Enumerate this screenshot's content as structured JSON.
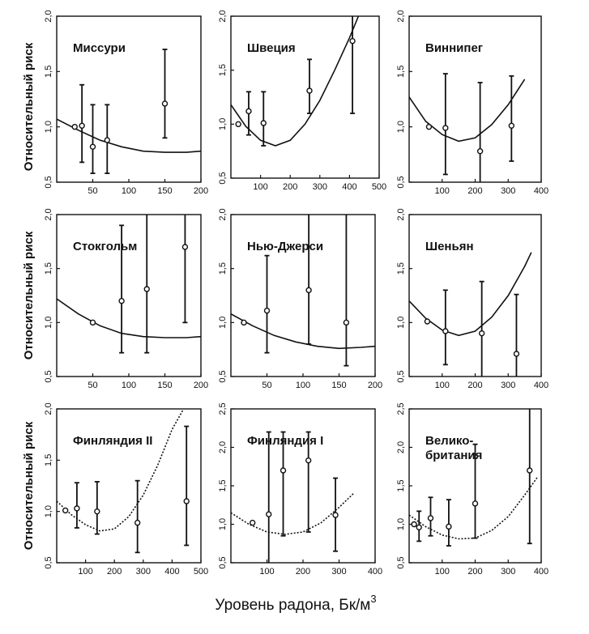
{
  "figure": {
    "ylabel": "Относительный риск",
    "xlabel_text": "Уровень радона, Бк/м",
    "xlabel_sup": "3"
  },
  "chart_data": [
    {
      "type": "scatter",
      "title": "Миссури",
      "xlim": [
        0,
        200
      ],
      "ylim": [
        0.5,
        2.0
      ],
      "xticks": [
        50,
        100,
        150,
        200
      ],
      "xtick_labels": [
        "50",
        "100",
        "150",
        "200"
      ],
      "yticks": [
        0.5,
        1.0,
        1.5,
        2.0
      ],
      "ytick_labels": [
        "0,5",
        "1,0",
        "1,5",
        "2,0"
      ],
      "points": [
        {
          "x": 25,
          "y": 1.0,
          "lo": 1.0,
          "hi": 1.0,
          "filled": true
        },
        {
          "x": 35,
          "y": 1.01,
          "lo": 0.68,
          "hi": 1.38
        },
        {
          "x": 50,
          "y": 0.82,
          "lo": 0.58,
          "hi": 1.2
        },
        {
          "x": 70,
          "y": 0.88,
          "lo": 0.58,
          "hi": 1.2
        },
        {
          "x": 150,
          "y": 1.21,
          "lo": 0.9,
          "hi": 1.7
        }
      ],
      "curve": {
        "x": [
          0,
          30,
          60,
          90,
          120,
          150,
          180,
          200
        ],
        "y": [
          1.07,
          0.97,
          0.88,
          0.82,
          0.78,
          0.77,
          0.77,
          0.78
        ]
      }
    },
    {
      "type": "scatter",
      "title": "Швеция",
      "xlim": [
        0,
        500
      ],
      "ylim": [
        0.5,
        2.0
      ],
      "xticks": [
        100,
        200,
        300,
        400,
        500
      ],
      "xtick_labels": [
        "100",
        "200",
        "300",
        "400",
        "500"
      ],
      "yticks": [
        0.5,
        1.0,
        1.5,
        2.0
      ],
      "ytick_labels": [
        "0,5",
        "1,0",
        "1,5",
        "2,0"
      ],
      "points": [
        {
          "x": 25,
          "y": 1.0,
          "lo": 1.0,
          "hi": 1.0
        },
        {
          "x": 60,
          "y": 1.12,
          "lo": 0.9,
          "hi": 1.3
        },
        {
          "x": 110,
          "y": 1.01,
          "lo": 0.8,
          "hi": 1.3
        },
        {
          "x": 265,
          "y": 1.31,
          "lo": 1.1,
          "hi": 1.6
        },
        {
          "x": 410,
          "y": 1.77,
          "lo": 1.1,
          "hi": 2.0
        }
      ],
      "curve": {
        "x": [
          0,
          50,
          100,
          150,
          200,
          250,
          300,
          350,
          400,
          430
        ],
        "y": [
          1.18,
          0.98,
          0.85,
          0.8,
          0.85,
          1.0,
          1.22,
          1.5,
          1.8,
          2.0
        ]
      }
    },
    {
      "type": "scatter",
      "title": "Виннипег",
      "xlim": [
        0,
        400
      ],
      "ylim": [
        0.5,
        2.0
      ],
      "xticks": [
        100,
        200,
        300,
        400
      ],
      "xtick_labels": [
        "100",
        "200",
        "300",
        "400"
      ],
      "yticks": [
        0.5,
        1.0,
        1.5,
        2.0
      ],
      "ytick_labels": [
        "0,5",
        "1,0",
        "1,5",
        "2,0"
      ],
      "points": [
        {
          "x": 60,
          "y": 1.0,
          "lo": 1.0,
          "hi": 1.0
        },
        {
          "x": 110,
          "y": 0.99,
          "lo": 0.57,
          "hi": 1.48
        },
        {
          "x": 215,
          "y": 0.78,
          "lo": 0.5,
          "hi": 1.4
        },
        {
          "x": 310,
          "y": 1.01,
          "lo": 0.69,
          "hi": 1.46
        }
      ],
      "curve": {
        "x": [
          0,
          50,
          100,
          150,
          200,
          250,
          300,
          350
        ],
        "y": [
          1.27,
          1.05,
          0.93,
          0.87,
          0.9,
          1.02,
          1.2,
          1.43
        ]
      }
    },
    {
      "type": "scatter",
      "title": "Стокгольм",
      "xlim": [
        0,
        200
      ],
      "ylim": [
        0.5,
        2.0
      ],
      "xticks": [
        50,
        100,
        150,
        200
      ],
      "xtick_labels": [
        "50",
        "100",
        "150",
        "200"
      ],
      "yticks": [
        0.5,
        1.0,
        1.5,
        2.0
      ],
      "ytick_labels": [
        "0,5",
        "1,0",
        "1,5",
        "2,0"
      ],
      "points": [
        {
          "x": 50,
          "y": 1.0,
          "lo": 1.0,
          "hi": 1.0
        },
        {
          "x": 90,
          "y": 1.2,
          "lo": 0.72,
          "hi": 1.9
        },
        {
          "x": 125,
          "y": 1.31,
          "lo": 0.72,
          "hi": 2.0
        },
        {
          "x": 178,
          "y": 1.7,
          "lo": 1.0,
          "hi": 2.0
        }
      ],
      "curve": {
        "x": [
          0,
          30,
          60,
          90,
          120,
          150,
          180,
          200
        ],
        "y": [
          1.22,
          1.08,
          0.97,
          0.9,
          0.87,
          0.86,
          0.86,
          0.87
        ]
      }
    },
    {
      "type": "scatter",
      "title": "Нью-Джерси",
      "xlim": [
        0,
        200
      ],
      "ylim": [
        0.5,
        2.0
      ],
      "xticks": [
        50,
        100,
        150,
        200
      ],
      "xtick_labels": [
        "50",
        "100",
        "150",
        "200"
      ],
      "yticks": [
        0.5,
        1.0,
        1.5,
        2.0
      ],
      "ytick_labels": [
        "0,5",
        "1,0",
        "1,5",
        "2,0"
      ],
      "points": [
        {
          "x": 18,
          "y": 1.0,
          "lo": 1.0,
          "hi": 1.0
        },
        {
          "x": 50,
          "y": 1.11,
          "lo": 0.72,
          "hi": 1.62
        },
        {
          "x": 108,
          "y": 1.3,
          "lo": 0.8,
          "hi": 2.0
        },
        {
          "x": 160,
          "y": 1.0,
          "lo": 0.6,
          "hi": 2.0
        }
      ],
      "curve": {
        "x": [
          0,
          30,
          60,
          90,
          120,
          150,
          180,
          200
        ],
        "y": [
          1.08,
          0.97,
          0.88,
          0.82,
          0.78,
          0.76,
          0.77,
          0.78
        ]
      }
    },
    {
      "type": "scatter",
      "title": "Шеньян",
      "xlim": [
        0,
        400
      ],
      "ylim": [
        0.5,
        2.0
      ],
      "xticks": [
        100,
        200,
        300,
        400
      ],
      "xtick_labels": [
        "100",
        "200",
        "300",
        "400"
      ],
      "yticks": [
        0.5,
        1.0,
        1.5,
        2.0
      ],
      "ytick_labels": [
        "0,5",
        "1,0",
        "1,5",
        "2,0"
      ],
      "points": [
        {
          "x": 55,
          "y": 1.01,
          "lo": 1.01,
          "hi": 1.01
        },
        {
          "x": 110,
          "y": 0.92,
          "lo": 0.61,
          "hi": 1.3
        },
        {
          "x": 220,
          "y": 0.9,
          "lo": 0.5,
          "hi": 1.38
        },
        {
          "x": 325,
          "y": 0.71,
          "lo": 0.5,
          "hi": 1.26
        }
      ],
      "curve": {
        "x": [
          0,
          50,
          100,
          150,
          200,
          250,
          300,
          350,
          370
        ],
        "y": [
          1.2,
          1.04,
          0.93,
          0.88,
          0.92,
          1.05,
          1.25,
          1.52,
          1.65
        ]
      }
    },
    {
      "type": "scatter",
      "title": "Финляндия II",
      "xlim": [
        0,
        500
      ],
      "ylim": [
        0.5,
        2.0
      ],
      "xticks": [
        100,
        200,
        300,
        400,
        500
      ],
      "xtick_labels": [
        "100",
        "200",
        "300",
        "400",
        "500"
      ],
      "yticks": [
        0.5,
        1.0,
        1.5,
        2.0
      ],
      "ytick_labels": [
        "0,5",
        "1,0",
        "1,5",
        "2,0"
      ],
      "points": [
        {
          "x": 30,
          "y": 1.01,
          "lo": 1.01,
          "hi": 1.01
        },
        {
          "x": 70,
          "y": 1.03,
          "lo": 0.84,
          "hi": 1.28
        },
        {
          "x": 140,
          "y": 1.0,
          "lo": 0.78,
          "hi": 1.29
        },
        {
          "x": 280,
          "y": 0.89,
          "lo": 0.6,
          "hi": 1.3
        },
        {
          "x": 450,
          "y": 1.1,
          "lo": 0.67,
          "hi": 1.83
        }
      ],
      "curve": {
        "x": [
          0,
          50,
          100,
          150,
          200,
          250,
          300,
          350,
          400,
          440
        ],
        "y": [
          1.1,
          0.97,
          0.87,
          0.81,
          0.83,
          0.95,
          1.16,
          1.45,
          1.8,
          2.0
        ]
      }
    },
    {
      "type": "scatter",
      "title": "Финляндия I",
      "xlim": [
        0,
        400
      ],
      "ylim": [
        0.5,
        2.5
      ],
      "xticks": [
        100,
        200,
        300,
        400
      ],
      "xtick_labels": [
        "100",
        "200",
        "300",
        "400"
      ],
      "yticks": [
        0.5,
        1.0,
        1.5,
        2.0,
        2.5
      ],
      "ytick_labels": [
        "0,5",
        "1,0",
        "1,5",
        "2,0",
        "2,5"
      ],
      "points": [
        {
          "x": 60,
          "y": 1.02,
          "lo": 1.02,
          "hi": 1.02
        },
        {
          "x": 105,
          "y": 1.13,
          "lo": 0.5,
          "hi": 2.2
        },
        {
          "x": 145,
          "y": 1.7,
          "lo": 0.85,
          "hi": 2.2
        },
        {
          "x": 215,
          "y": 1.83,
          "lo": 0.9,
          "hi": 2.2
        },
        {
          "x": 290,
          "y": 1.12,
          "lo": 0.65,
          "hi": 1.6
        }
      ],
      "curve": {
        "x": [
          0,
          50,
          100,
          150,
          200,
          250,
          300,
          340
        ],
        "y": [
          1.15,
          1.0,
          0.9,
          0.87,
          0.9,
          1.02,
          1.22,
          1.4
        ]
      }
    },
    {
      "type": "scatter",
      "title": "Велико-британия",
      "title_lines": [
        "Велико-",
        "британия"
      ],
      "xlim": [
        0,
        400
      ],
      "ylim": [
        0.5,
        2.5
      ],
      "xticks": [
        100,
        200,
        300,
        400
      ],
      "xtick_labels": [
        "100",
        "200",
        "300",
        "400"
      ],
      "yticks": [
        0.5,
        1.0,
        1.5,
        2.0,
        2.5
      ],
      "ytick_labels": [
        "0,5",
        "1,0",
        "1,5",
        "2,0",
        "2,5"
      ],
      "points": [
        {
          "x": 15,
          "y": 1.0,
          "lo": 1.0,
          "hi": 1.0
        },
        {
          "x": 30,
          "y": 0.96,
          "lo": 0.78,
          "hi": 1.17
        },
        {
          "x": 65,
          "y": 1.08,
          "lo": 0.85,
          "hi": 1.35
        },
        {
          "x": 120,
          "y": 0.97,
          "lo": 0.72,
          "hi": 1.32
        },
        {
          "x": 200,
          "y": 1.27,
          "lo": 0.82,
          "hi": 2.04
        },
        {
          "x": 365,
          "y": 1.7,
          "lo": 0.75,
          "hi": 2.5
        }
      ],
      "curve": {
        "x": [
          0,
          50,
          100,
          150,
          200,
          250,
          300,
          350,
          390
        ],
        "y": [
          1.12,
          0.97,
          0.86,
          0.81,
          0.82,
          0.92,
          1.1,
          1.38,
          1.62
        ]
      }
    }
  ]
}
